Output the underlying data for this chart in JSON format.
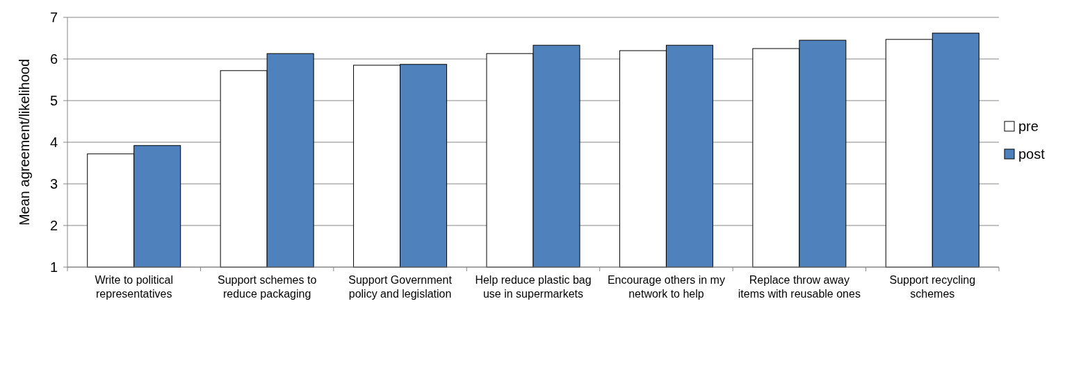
{
  "chart_data": {
    "type": "bar",
    "ylabel": "Mean agreement/likelihood",
    "categories": [
      "Write to political representatives",
      "Support schemes to reduce packaging",
      "Support Government policy and legislation",
      "Help reduce plastic bag use in supermarkets",
      "Encourage others in my network to help",
      "Replace throw away items with reusable ones",
      "Support recycling schemes"
    ],
    "series": [
      {
        "name": "pre",
        "color": "#ffffff",
        "values": [
          3.72,
          5.72,
          5.85,
          6.13,
          6.2,
          6.25,
          6.47
        ]
      },
      {
        "name": "post",
        "color": "#4f81bd",
        "values": [
          3.92,
          6.13,
          5.87,
          6.33,
          6.33,
          6.45,
          6.62
        ]
      }
    ],
    "ylim": [
      1,
      7
    ],
    "yticks": [
      1,
      2,
      3,
      4,
      5,
      6,
      7
    ],
    "grid": "y",
    "legend": "right"
  }
}
